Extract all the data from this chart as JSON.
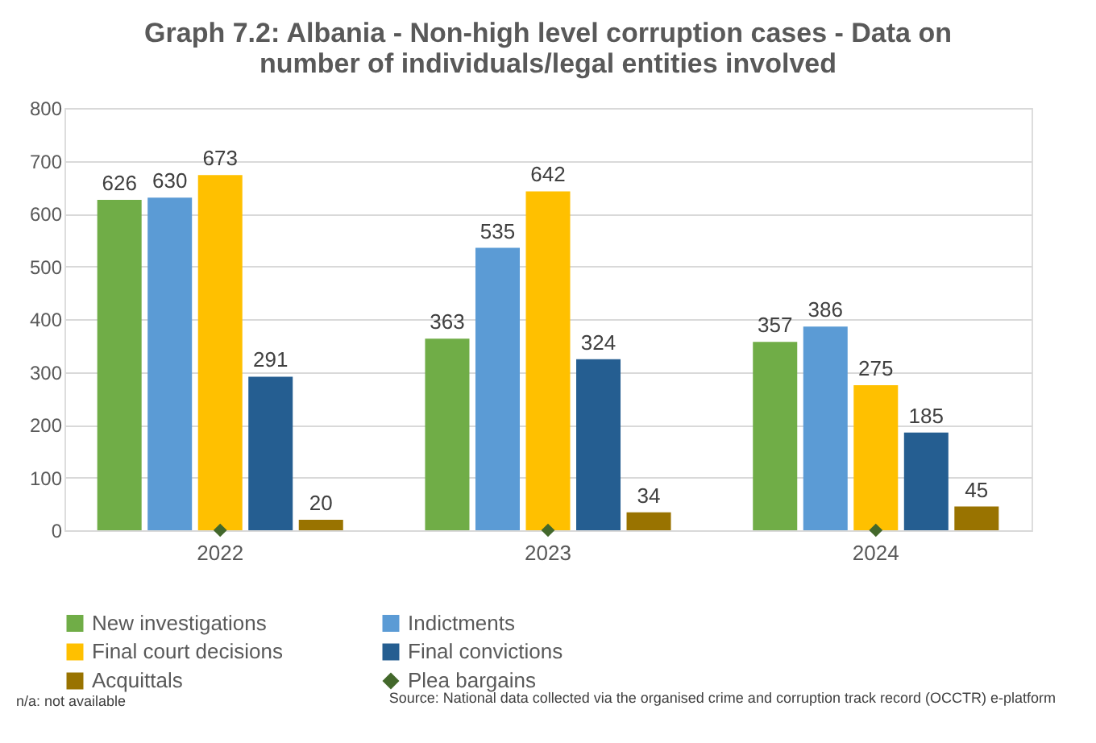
{
  "chart_data": {
    "type": "bar",
    "title": [
      "Graph 7.2: Albania - Non-high level corruption cases - Data on",
      "number of individuals/legal entities involved"
    ],
    "categories": [
      "2022",
      "2023",
      "2024"
    ],
    "series": [
      {
        "name": "New investigations",
        "color": "#70ad47",
        "values": [
          626,
          363,
          357
        ]
      },
      {
        "name": "Indictments",
        "color": "#5b9bd5",
        "values": [
          630,
          535,
          386
        ]
      },
      {
        "name": "Final court decisions",
        "color": "#ffc000",
        "values": [
          673,
          642,
          275
        ]
      },
      {
        "name": "Final convictions",
        "color": "#255e91",
        "values": [
          291,
          324,
          185
        ]
      },
      {
        "name": "Acquittals",
        "color": "#997300",
        "values": [
          20,
          34,
          45
        ]
      },
      {
        "name": "Plea bargains",
        "type": "scatter",
        "marker": "diamond",
        "color": "#43682b",
        "values": [
          0,
          0,
          0
        ],
        "value_labels": [
          null,
          null,
          null
        ]
      }
    ],
    "ylim": [
      0,
      800
    ],
    "yticks": [
      0,
      100,
      200,
      300,
      400,
      500,
      600,
      700,
      800
    ],
    "grid": "y",
    "legend": "bottom",
    "data_labels": true,
    "annotations": [
      "n/a: not available",
      "Source: National data collected via the organised crime and corruption track record (OCCTR) e-platform"
    ]
  }
}
